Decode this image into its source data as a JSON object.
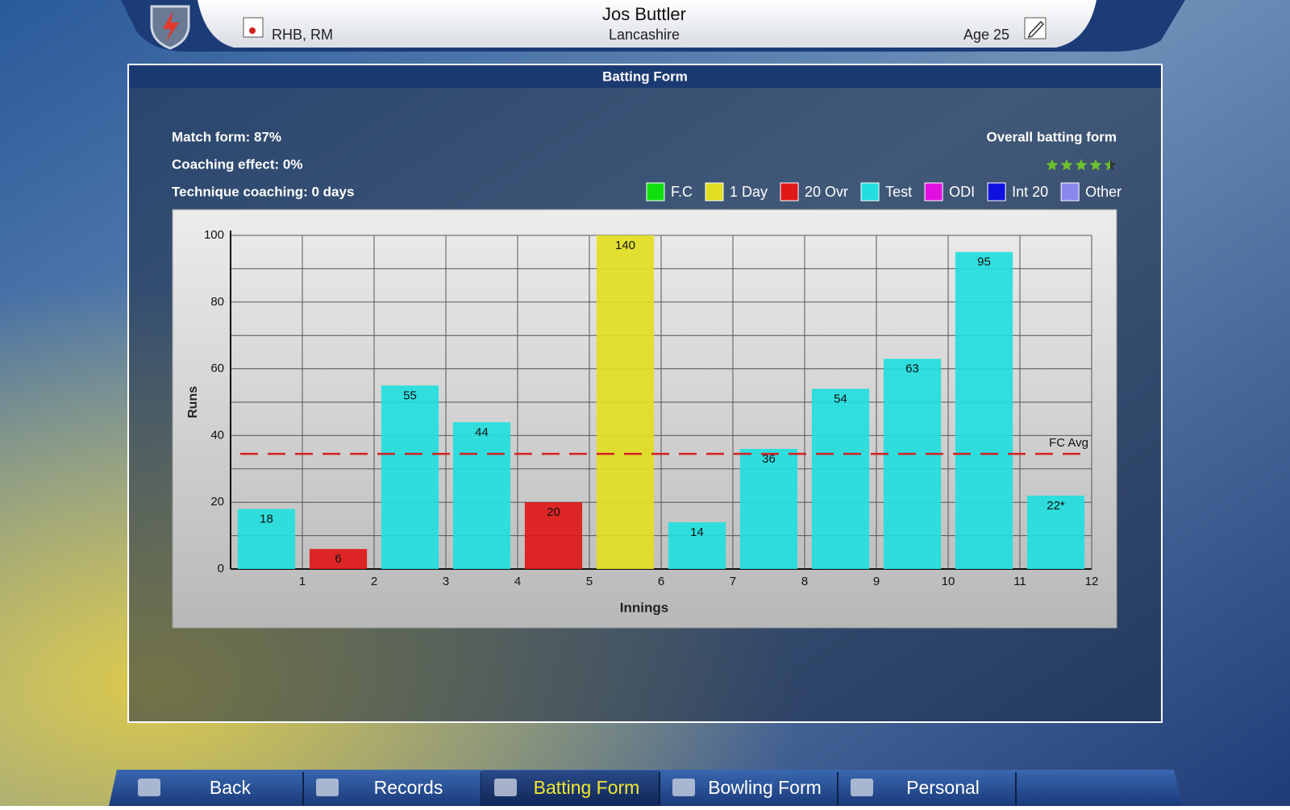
{
  "header": {
    "name": "Jos Buttler",
    "style": "RHB, RM",
    "team": "Lancashire",
    "age": "Age 25"
  },
  "panel_title": "Batting Form",
  "stats": [
    "Match form: 87%",
    "Coaching effect: 0%",
    "Technique coaching: 0 days"
  ],
  "rating": {
    "label": "Overall batting form",
    "stars": 4.5,
    "max": 5
  },
  "chart_data": {
    "type": "bar",
    "categories": [
      "1",
      "2",
      "3",
      "4",
      "5",
      "6",
      "7",
      "8",
      "9",
      "10",
      "11",
      "12"
    ],
    "values": [
      18,
      6,
      55,
      44,
      20,
      140,
      14,
      36,
      54,
      63,
      95,
      22
    ],
    "value_labels": [
      "18",
      "6",
      "55",
      "44",
      "20",
      "140",
      "14",
      "36",
      "54",
      "63",
      "95",
      "22*"
    ],
    "bar_types": [
      "Test",
      "20 Ovr",
      "Test",
      "Test",
      "20 Ovr",
      "1 Day",
      "Test",
      "Test",
      "Test",
      "Test",
      "Test",
      "Test"
    ],
    "legend": [
      {
        "name": "F.C",
        "color": "#10e010"
      },
      {
        "name": "1 Day",
        "color": "#e2de22"
      },
      {
        "name": "20 Ovr",
        "color": "#e01818"
      },
      {
        "name": "Test",
        "color": "#22dede"
      },
      {
        "name": "ODI",
        "color": "#e010e0"
      },
      {
        "name": "Int 20",
        "color": "#1010e0"
      },
      {
        "name": "Other",
        "color": "#8888ee"
      }
    ],
    "xlabel": "Innings",
    "ylabel": "Runs",
    "ylim": [
      0,
      100
    ],
    "yticks": [
      0,
      20,
      40,
      60,
      80,
      100
    ],
    "yminor": [
      10,
      30,
      50,
      70,
      90
    ],
    "grid": true,
    "reference_line": {
      "value": 34.5,
      "label": "FC Avg",
      "color": "#d42020"
    }
  },
  "nav": [
    {
      "label": "Back"
    },
    {
      "label": "Records"
    },
    {
      "label": "Batting Form",
      "active": true
    },
    {
      "label": "Bowling Form"
    },
    {
      "label": "Personal"
    }
  ]
}
